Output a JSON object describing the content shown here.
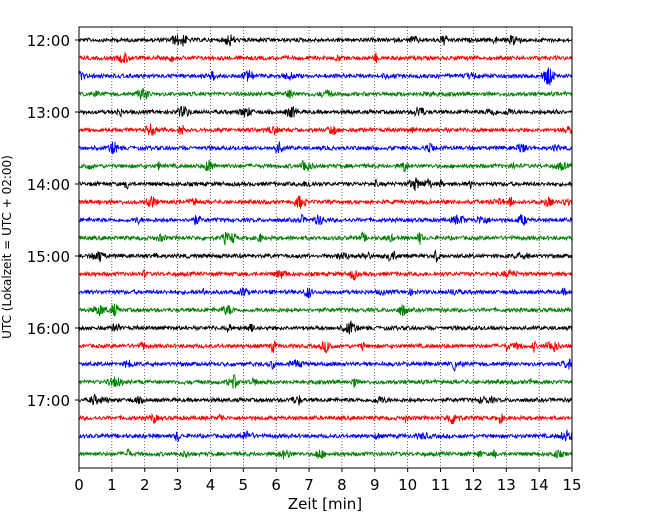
{
  "chart_data": {
    "type": "line",
    "subtype": "helicorder",
    "xlabel": "Zeit  [min]",
    "ylabel": "UTC (Lokalzeit = UTC + 02:00)",
    "xlim": [
      0,
      15
    ],
    "x_ticks": [
      0,
      1,
      2,
      3,
      4,
      5,
      6,
      7,
      8,
      9,
      10,
      11,
      12,
      13,
      14,
      15
    ],
    "y_tick_labels": [
      "12:00",
      "13:00",
      "14:00",
      "15:00",
      "16:00",
      "17:00"
    ],
    "grid": "vertical dotted",
    "row_colors": [
      "#000000",
      "#ff0000",
      "#0000ff",
      "#008000"
    ],
    "rows": [
      {
        "start": "12:00",
        "color": "#000000"
      },
      {
        "start": "12:15",
        "color": "#ff0000"
      },
      {
        "start": "12:30",
        "color": "#0000ff"
      },
      {
        "start": "12:45",
        "color": "#008000"
      },
      {
        "start": "13:00",
        "color": "#000000"
      },
      {
        "start": "13:15",
        "color": "#ff0000"
      },
      {
        "start": "13:30",
        "color": "#0000ff"
      },
      {
        "start": "13:45",
        "color": "#008000"
      },
      {
        "start": "14:00",
        "color": "#000000"
      },
      {
        "start": "14:15",
        "color": "#ff0000"
      },
      {
        "start": "14:30",
        "color": "#0000ff"
      },
      {
        "start": "14:45",
        "color": "#008000"
      },
      {
        "start": "15:00",
        "color": "#000000"
      },
      {
        "start": "15:15",
        "color": "#ff0000"
      },
      {
        "start": "15:30",
        "color": "#0000ff"
      },
      {
        "start": "15:45",
        "color": "#008000"
      },
      {
        "start": "16:00",
        "color": "#000000"
      },
      {
        "start": "16:15",
        "color": "#ff0000"
      },
      {
        "start": "16:30",
        "color": "#0000ff"
      },
      {
        "start": "16:45",
        "color": "#008000"
      },
      {
        "start": "17:00",
        "color": "#000000"
      },
      {
        "start": "17:15",
        "color": "#ff0000"
      },
      {
        "start": "17:30",
        "color": "#0000ff"
      },
      {
        "start": "17:45",
        "color": "#008000"
      }
    ]
  }
}
